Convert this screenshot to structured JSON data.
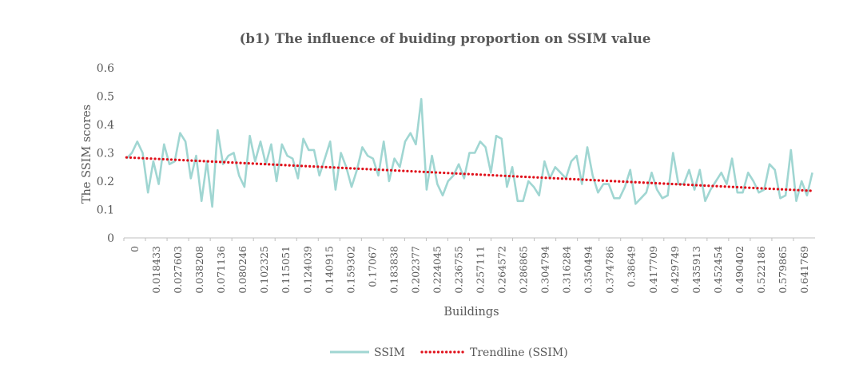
{
  "chart_data": {
    "type": "line",
    "title": "(b1) The influence of buiding proportion on SSIM value",
    "xlabel": "Buildings",
    "ylabel": "The SSIM scores",
    "ylim": [
      0,
      0.6
    ],
    "y_ticks": [
      "0",
      "0.1",
      "0.2",
      "0.3",
      "0.4",
      "0.5",
      "0.6"
    ],
    "x_tick_labels": [
      "0",
      "0.018433",
      "0.027603",
      "0.038208",
      "0.071136",
      "0.080246",
      "0.102325",
      "0.115051",
      "0.124039",
      "0.140915",
      "0.159302",
      "0.17067",
      "0.183838",
      "0.202377",
      "0.224045",
      "0.236755",
      "0.257111",
      "0.264572",
      "0.286865",
      "0.304794",
      "0.316284",
      "0.350494",
      "0.374786",
      "0.38649",
      "0.417709",
      "0.429749",
      "0.435913",
      "0.452454",
      "0.490402",
      "0.522186",
      "0.579865",
      "0.641769"
    ],
    "grid": false,
    "legend_position": "bottom",
    "series": [
      {
        "name": "SSIM",
        "color": "#a0d6d2",
        "values": [
          0.28,
          0.3,
          0.34,
          0.3,
          0.16,
          0.27,
          0.19,
          0.33,
          0.26,
          0.27,
          0.37,
          0.34,
          0.21,
          0.29,
          0.13,
          0.27,
          0.11,
          0.38,
          0.26,
          0.29,
          0.3,
          0.22,
          0.18,
          0.36,
          0.27,
          0.34,
          0.26,
          0.33,
          0.2,
          0.33,
          0.29,
          0.28,
          0.21,
          0.35,
          0.31,
          0.31,
          0.22,
          0.28,
          0.34,
          0.17,
          0.3,
          0.25,
          0.18,
          0.24,
          0.32,
          0.29,
          0.28,
          0.22,
          0.34,
          0.2,
          0.28,
          0.25,
          0.34,
          0.37,
          0.33,
          0.49,
          0.17,
          0.29,
          0.19,
          0.15,
          0.2,
          0.22,
          0.26,
          0.21,
          0.3,
          0.3,
          0.34,
          0.32,
          0.23,
          0.36,
          0.35,
          0.18,
          0.25,
          0.13,
          0.13,
          0.2,
          0.18,
          0.15,
          0.27,
          0.21,
          0.25,
          0.23,
          0.21,
          0.27,
          0.29,
          0.19,
          0.32,
          0.22,
          0.16,
          0.19,
          0.19,
          0.14,
          0.14,
          0.18,
          0.24,
          0.12,
          0.14,
          0.16,
          0.23,
          0.17,
          0.14,
          0.15,
          0.3,
          0.19,
          0.19,
          0.24,
          0.17,
          0.24,
          0.13,
          0.17,
          0.2,
          0.23,
          0.19,
          0.28,
          0.16,
          0.16,
          0.23,
          0.2,
          0.16,
          0.17,
          0.26,
          0.24,
          0.14,
          0.15,
          0.31,
          0.13,
          0.2,
          0.15,
          0.23
        ]
      },
      {
        "name": "Trendline (SSIM)",
        "color": "#e0101a",
        "style": "dotted",
        "start": 0.284,
        "end": 0.166
      }
    ]
  }
}
